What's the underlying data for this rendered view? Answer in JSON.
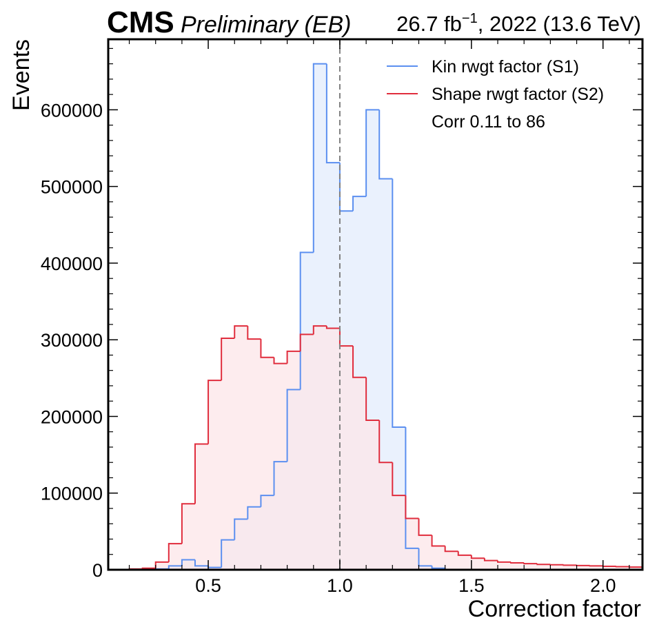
{
  "header": {
    "experiment": "CMS",
    "status": "Preliminary (EB)",
    "lumi_text": "26.7 fb",
    "lumi_exponent": "−1",
    "run_info": ", 2022 (13.6 TeV)"
  },
  "colors": {
    "s1_line": "#5b8ff0",
    "s1_fill": "#eaf1fd",
    "s2_line": "#e02c3c",
    "s2_fill": "#fce5e8",
    "reference_line": "#808080"
  },
  "chart_data": {
    "type": "histogram",
    "xlabel": "Correction factor",
    "ylabel": "Events",
    "xlim": [
      0.12,
      2.15
    ],
    "ylim": [
      0,
      692000
    ],
    "bin_edges": [
      0.2,
      0.25,
      0.3,
      0.35,
      0.4,
      0.45,
      0.5,
      0.55,
      0.6,
      0.65,
      0.7,
      0.75,
      0.8,
      0.85,
      0.9,
      0.95,
      1.0,
      1.05,
      1.1,
      1.15,
      1.2,
      1.25,
      1.3,
      1.35,
      1.4,
      1.45,
      1.5,
      1.55,
      1.6,
      1.65,
      1.7,
      1.75,
      1.8,
      1.85,
      1.9,
      1.95,
      2.0,
      2.05,
      2.1,
      2.15
    ],
    "x_ticks": [
      0.5,
      1.0,
      1.5,
      2.0
    ],
    "x_tick_labels": [
      "0.5",
      "1.0",
      "1.5",
      "2.0"
    ],
    "y_ticks": [
      0,
      100000,
      200000,
      300000,
      400000,
      500000,
      600000
    ],
    "y_tick_labels": [
      "0",
      "100000",
      "200000",
      "300000",
      "400000",
      "500000",
      "600000"
    ],
    "reference_line_x": 1.0,
    "legend_position": "top-right",
    "legend_note": "Corr 0.11 to 86",
    "series": [
      {
        "name": "Kin rwgt factor (S1)",
        "values": [
          0,
          0,
          1000,
          5000,
          13000,
          5000,
          3000,
          39000,
          66000,
          82000,
          97000,
          141000,
          235000,
          414000,
          660000,
          531000,
          468000,
          487000,
          600000,
          510000,
          186000,
          28000,
          5000,
          2000,
          500,
          0,
          0,
          0,
          0,
          0,
          0,
          0,
          0,
          0,
          0,
          0,
          0,
          0,
          0
        ]
      },
      {
        "name": "Shape rwgt factor (S2)",
        "values": [
          1000,
          2000,
          10000,
          34000,
          86000,
          164000,
          247000,
          302000,
          318000,
          301000,
          277000,
          269000,
          285000,
          307000,
          318000,
          315000,
          292000,
          251000,
          195000,
          140000,
          97000,
          67000,
          45000,
          31000,
          24000,
          19000,
          15000,
          12000,
          10000,
          9000,
          8000,
          7000,
          6500,
          6000,
          5500,
          5000,
          4500,
          4000,
          3500
        ]
      }
    ]
  }
}
